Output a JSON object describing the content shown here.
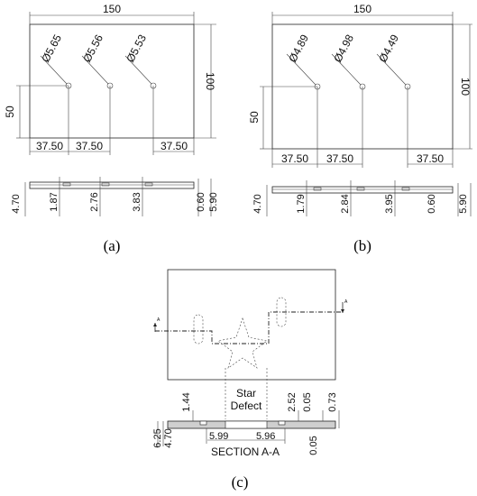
{
  "panel_a": {
    "caption": "(a)",
    "width_dim": "150",
    "height_dim": "100",
    "y_dim": "50",
    "x_dims": [
      "37.50",
      "37.50",
      "37.50"
    ],
    "diameters": [
      "5.65",
      "5.56",
      "5.53"
    ],
    "diameter_symbol": "Ø",
    "side_left": "4.70",
    "depths": [
      "1.87",
      "2.76",
      "3.83"
    ],
    "side_right": [
      "0.60",
      "5.90"
    ]
  },
  "panel_b": {
    "caption": "(b)",
    "width_dim": "150",
    "height_dim": "100",
    "y_dim": "50",
    "x_dims": [
      "37.50",
      "37.50",
      "37.50"
    ],
    "diameters": [
      "4.89",
      "4.98",
      "4.49"
    ],
    "diameter_symbol": "Ø",
    "side_left": "4.70",
    "depths": [
      "1.79",
      "2.84",
      "3.95"
    ],
    "side_right": [
      "0.60",
      "5.90"
    ]
  },
  "panel_c": {
    "caption": "(c)",
    "section_marker": "A",
    "label_line1": "Star",
    "label_line2": "Defect",
    "dim_left_top": "1.44",
    "dim_left_a": "6.25",
    "dim_left_b": "4.70",
    "dim_mid_a": "5.99",
    "dim_mid_b": "5.96",
    "dim_right_a": "2.52",
    "dim_right_b": "0.05",
    "dim_right_c": "0.73",
    "dim_right_d": "0.05",
    "section_label": "SECTION A-A"
  }
}
